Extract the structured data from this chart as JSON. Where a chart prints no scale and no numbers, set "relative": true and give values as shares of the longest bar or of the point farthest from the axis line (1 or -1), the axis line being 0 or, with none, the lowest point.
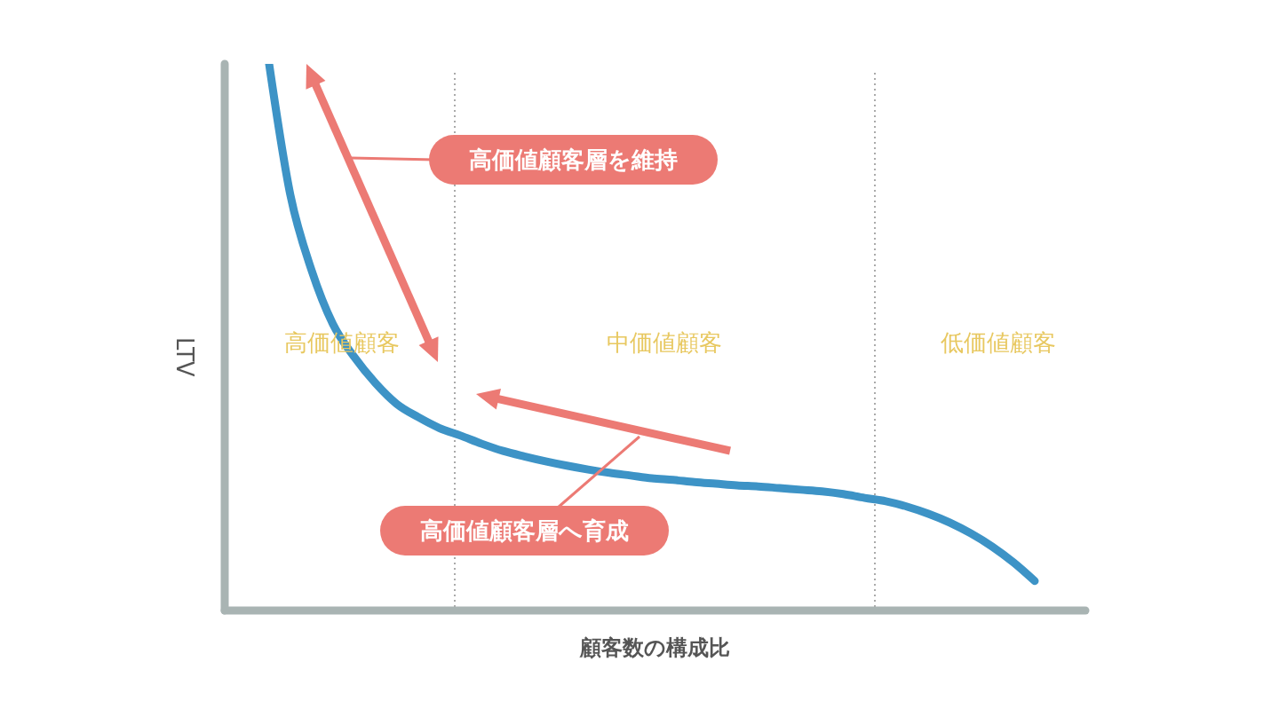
{
  "chart_data": {
    "type": "line",
    "relative": true,
    "xlabel": "顧客数の構成比",
    "ylabel": "LTV",
    "marker": "none",
    "line_style": "solid",
    "categories": [
      null,
      null,
      null,
      null,
      null,
      null,
      null,
      null,
      null,
      null,
      null,
      null,
      null,
      null,
      null,
      null,
      null,
      null,
      null,
      null,
      null,
      null,
      null,
      null,
      null,
      null,
      null,
      null,
      null,
      null,
      null,
      null,
      null,
      null,
      null,
      null,
      null
    ],
    "series": [
      {
        "color": "#3d93c6",
        "values": [
          1.0,
          0.76,
          0.622,
          0.524,
          0.464,
          0.416,
          0.378,
          0.354,
          0.334,
          0.32,
          0.305,
          0.292,
          0.282,
          0.273,
          0.265,
          0.258,
          0.252,
          0.247,
          0.242,
          0.239,
          0.235,
          0.232,
          0.229,
          0.227,
          0.224,
          0.221,
          0.218,
          0.213,
          0.206,
          0.2,
          0.19,
          0.177,
          0.161,
          0.141,
          0.117,
          0.088,
          0.054
        ]
      }
    ],
    "annotations": [
      "高価値顧客",
      "中価値顧客",
      "低価値顧客",
      "高価値顧客層を維持",
      "高価値顧客層へ育成"
    ]
  }
}
